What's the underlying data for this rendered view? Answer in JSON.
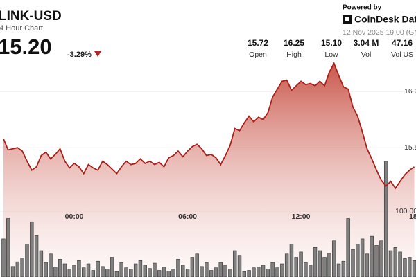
{
  "chart_data": {
    "type": "area",
    "title": "LINK-USD",
    "subtitle": "4 Hour Chart",
    "price": "15.20",
    "change": "-3.29%",
    "powered_by": "Powered by",
    "brand": "CoinDesk Dat",
    "timestamp": "12 Nov 2025 19:00 (GM",
    "stats": [
      {
        "value": "15.72",
        "label": "Open"
      },
      {
        "value": "16.25",
        "label": "High"
      },
      {
        "value": "15.10",
        "label": "Low"
      },
      {
        "value": "3.04 M",
        "label": "Vol"
      },
      {
        "value": "47.16",
        "label": "Vol US"
      }
    ],
    "color": "#a8201a",
    "volume_color": "#6b6b6b",
    "x": [
      -3.75,
      -3.5,
      -3.25,
      -3,
      -2.75,
      -2.5,
      -2.25,
      -2,
      -1.75,
      -1.5,
      -1.25,
      -1,
      -0.75,
      -0.5,
      -0.25,
      0,
      0.25,
      0.5,
      0.75,
      1,
      1.25,
      1.5,
      1.75,
      2,
      2.25,
      2.5,
      2.75,
      3,
      3.25,
      3.5,
      3.75,
      4,
      4.25,
      4.5,
      4.75,
      5,
      5.25,
      5.5,
      5.75,
      6,
      6.25,
      6.5,
      6.75,
      7,
      7.25,
      7.5,
      7.75,
      8,
      8.25,
      8.5,
      8.75,
      9,
      9.25,
      9.5,
      9.75,
      10,
      10.25,
      10.5,
      10.75,
      11,
      11.25,
      11.5,
      11.75,
      12,
      12.25,
      12.5,
      12.75,
      13,
      13.25,
      13.5,
      13.75,
      14,
      14.25,
      14.5,
      14.75,
      15,
      15.25,
      15.5,
      15.75,
      16,
      16.25,
      16.5,
      16.75,
      17,
      17.25,
      17.5,
      17.75,
      18
    ],
    "series": [
      {
        "name": "Price",
        "values": [
          15.58,
          15.48,
          15.49,
          15.5,
          15.47,
          15.38,
          15.3,
          15.33,
          15.43,
          15.46,
          15.4,
          15.44,
          15.49,
          15.38,
          15.32,
          15.36,
          15.33,
          15.27,
          15.35,
          15.32,
          15.3,
          15.38,
          15.35,
          15.31,
          15.27,
          15.33,
          15.38,
          15.35,
          15.36,
          15.4,
          15.36,
          15.38,
          15.35,
          15.37,
          15.33,
          15.41,
          15.43,
          15.47,
          15.42,
          15.47,
          15.51,
          15.53,
          15.49,
          15.43,
          15.44,
          15.41,
          15.35,
          15.43,
          15.52,
          15.67,
          15.65,
          15.72,
          15.78,
          15.73,
          15.77,
          15.75,
          15.81,
          15.95,
          16.02,
          16.09,
          16.1,
          16.01,
          16.05,
          16.09,
          16.06,
          16.07,
          16.05,
          16.09,
          16.05,
          16.17,
          16.25,
          16.14,
          16.04,
          16.02,
          15.86,
          15.78,
          15.64,
          15.49,
          15.4,
          15.3,
          15.21,
          15.16,
          15.2,
          15.14,
          15.2,
          15.26,
          15.3,
          15.33
        ]
      },
      {
        "name": "Volume",
        "axis": "y2",
        "values": [
          58,
          89,
          16,
          23,
          29,
          50,
          84,
          63,
          40,
          22,
          35,
          15,
          27,
          20,
          12,
          18,
          25,
          14,
          20,
          10,
          24,
          16,
          12,
          30,
          8,
          22,
          14,
          12,
          20,
          25,
          18,
          13,
          21,
          10,
          15,
          9,
          12,
          27,
          18,
          12,
          30,
          35,
          16,
          22,
          10,
          14,
          22,
          18,
          12,
          40,
          33,
          8,
          10,
          14,
          15,
          18,
          12,
          22,
          14,
          20,
          35,
          50,
          30,
          38,
          22,
          18,
          45,
          40,
          30,
          36,
          55,
          20,
          24,
          89,
          42,
          50,
          58,
          35,
          62,
          48,
          55,
          176,
          40,
          45,
          38,
          28,
          30,
          25
        ]
      }
    ],
    "xlim": [
      -3.93,
      18.09
    ],
    "xticks": [
      {
        "value": 0,
        "label": "00:00"
      },
      {
        "value": 6,
        "label": "06:00"
      },
      {
        "value": 12,
        "label": "12:00"
      },
      {
        "value": 18,
        "label": "18:"
      }
    ],
    "ylim": [
      14.35,
      16.32
    ],
    "yticks": [
      {
        "value": 16,
        "label": "16.0"
      },
      {
        "value": 15.5,
        "label": "15.5"
      }
    ],
    "y2lim": [
      0,
      337
    ],
    "y2ticks": [
      {
        "value": 100,
        "label": "100.00"
      }
    ],
    "grid": true
  }
}
